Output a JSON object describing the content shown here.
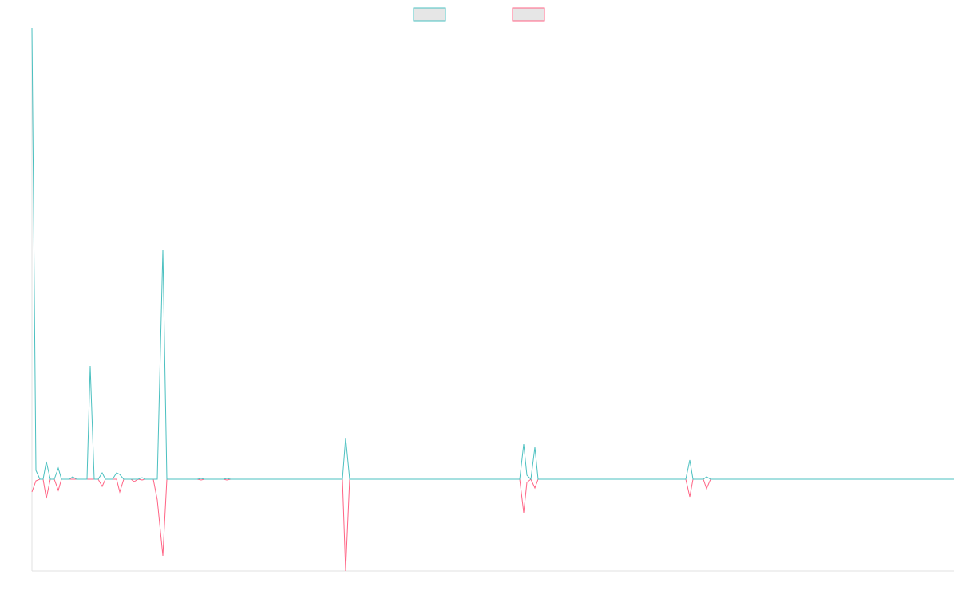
{
  "chart_data": {
    "type": "line",
    "x": [
      0,
      5,
      10,
      14,
      18,
      23,
      28,
      33,
      37,
      47,
      51,
      56,
      69,
      73,
      78,
      83,
      88,
      92,
      101,
      106,
      110,
      115,
      124,
      128,
      133,
      138,
      142,
      152,
      157,
      164,
      169,
      207,
      212,
      216,
      240,
      244,
      249,
      389,
      393,
      398,
      611,
      616,
      620,
      625,
      630,
      634,
      819,
      824,
      828,
      841,
      845,
      850,
      1155
    ],
    "series": [
      {
        "color": "#4bc0c0",
        "values": [
          566,
          11,
          0,
          0,
          22,
          0,
          0,
          14,
          0,
          0,
          3,
          0,
          0,
          142,
          0,
          0,
          8,
          0,
          0,
          8,
          6,
          0,
          0,
          0,
          0,
          2,
          0,
          0,
          0,
          288,
          0,
          0,
          1,
          0,
          0,
          1,
          0,
          0,
          52,
          0,
          0,
          44,
          5,
          0,
          40,
          0,
          0,
          24,
          0,
          0,
          3,
          0,
          0
        ]
      },
      {
        "color": "#ff6384",
        "values": [
          -16,
          -2,
          0,
          0,
          -24,
          0,
          0,
          -14,
          0,
          0,
          0,
          0,
          0,
          0,
          0,
          0,
          -9,
          0,
          0,
          0,
          -16,
          0,
          0,
          -3,
          0,
          -1,
          0,
          0,
          -26,
          -96,
          0,
          0,
          -1,
          0,
          0,
          -1,
          0,
          0,
          -115,
          0,
          0,
          -42,
          -4,
          0,
          -11,
          0,
          0,
          -22,
          0,
          0,
          -12,
          0,
          0
        ]
      }
    ],
    "xlim": [
      0,
      1155
    ],
    "ylim": [
      -115,
      566
    ]
  }
}
